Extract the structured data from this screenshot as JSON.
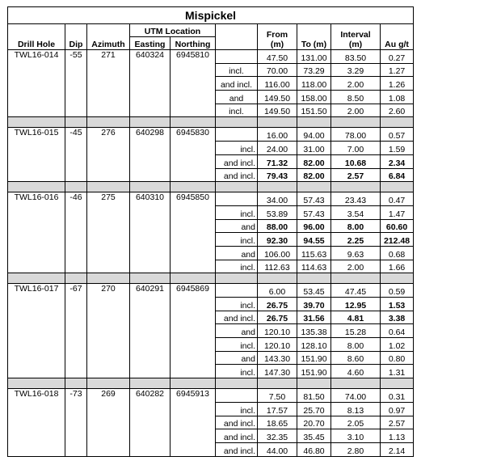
{
  "title": "Mispickel",
  "headers": {
    "drill_hole": "Drill Hole",
    "dip": "Dip",
    "azimuth": "Azimuth",
    "utm_location": "UTM Location",
    "easting": "Easting",
    "northing": "Northing",
    "from": "From (m)",
    "to": "To (m)",
    "interval": "Interval (m)",
    "au": "Au g/t"
  },
  "holes": [
    {
      "id": "TWL16-014",
      "dip": "-55",
      "azimuth": "271",
      "easting": "640324",
      "northing": "6945810",
      "qual_align": "center",
      "intervals": [
        {
          "qual": "",
          "from": "47.50",
          "to": "131.00",
          "interval": "83.50",
          "au": "0.27",
          "bold": false
        },
        {
          "qual": "incl.",
          "from": "70.00",
          "to": "73.29",
          "interval": "3.29",
          "au": "1.27",
          "bold": false
        },
        {
          "qual": "and incl.",
          "from": "116.00",
          "to": "118.00",
          "interval": "2.00",
          "au": "1.26",
          "bold": false
        },
        {
          "qual": "and",
          "from": "149.50",
          "to": "158.00",
          "interval": "8.50",
          "au": "1.08",
          "bold": false
        },
        {
          "qual": "incl.",
          "from": "149.50",
          "to": "151.50",
          "interval": "2.00",
          "au": "2.60",
          "bold": false
        }
      ]
    },
    {
      "id": "TWL16-015",
      "dip": "-45",
      "azimuth": "276",
      "easting": "640298",
      "northing": "6945830",
      "qual_align": "right",
      "intervals": [
        {
          "qual": "",
          "from": "16.00",
          "to": "94.00",
          "interval": "78.00",
          "au": "0.57",
          "bold": false
        },
        {
          "qual": "incl.",
          "from": "24.00",
          "to": "31.00",
          "interval": "7.00",
          "au": "1.59",
          "bold": false
        },
        {
          "qual": "and incl.",
          "from": "71.32",
          "to": "82.00",
          "interval": "10.68",
          "au": "2.34",
          "bold": true
        },
        {
          "qual": "and incl.",
          "from": "79.43",
          "to": "82.00",
          "interval": "2.57",
          "au": "6.84",
          "bold": true
        }
      ]
    },
    {
      "id": "TWL16-016",
      "dip": "-46",
      "azimuth": "275",
      "easting": "640310",
      "northing": "6945850",
      "qual_align": "right",
      "intervals": [
        {
          "qual": "",
          "from": "34.00",
          "to": "57.43",
          "interval": "23.43",
          "au": "0.47",
          "bold": false
        },
        {
          "qual": "incl.",
          "from": "53.89",
          "to": "57.43",
          "interval": "3.54",
          "au": "1.47",
          "bold": false
        },
        {
          "qual": "and",
          "from": "88.00",
          "to": "96.00",
          "interval": "8.00",
          "au": "60.60",
          "bold": true
        },
        {
          "qual": "incl.",
          "from": "92.30",
          "to": "94.55",
          "interval": "2.25",
          "au": "212.48",
          "bold": true
        },
        {
          "qual": "and",
          "from": "106.00",
          "to": "115.63",
          "interval": "9.63",
          "au": "0.68",
          "bold": false
        },
        {
          "qual": "incl.",
          "from": "112.63",
          "to": "114.63",
          "interval": "2.00",
          "au": "1.66",
          "bold": false
        }
      ]
    },
    {
      "id": "TWL16-017",
      "dip": "-67",
      "azimuth": "270",
      "easting": "640291",
      "northing": "6945869",
      "qual_align": "right",
      "intervals": [
        {
          "qual": "",
          "from": "6.00",
          "to": "53.45",
          "interval": "47.45",
          "au": "0.59",
          "bold": false
        },
        {
          "qual": "incl.",
          "from": "26.75",
          "to": "39.70",
          "interval": "12.95",
          "au": "1.53",
          "bold": true
        },
        {
          "qual": "and incl.",
          "from": "26.75",
          "to": "31.56",
          "interval": "4.81",
          "au": "3.38",
          "bold": true
        },
        {
          "qual": "and",
          "from": "120.10",
          "to": "135.38",
          "interval": "15.28",
          "au": "0.64",
          "bold": false
        },
        {
          "qual": "incl.",
          "from": "120.10",
          "to": "128.10",
          "interval": "8.00",
          "au": "1.02",
          "bold": false
        },
        {
          "qual": "and",
          "from": "143.30",
          "to": "151.90",
          "interval": "8.60",
          "au": "0.80",
          "bold": false
        },
        {
          "qual": "incl.",
          "from": "147.30",
          "to": "151.90",
          "interval": "4.60",
          "au": "1.31",
          "bold": false
        }
      ]
    },
    {
      "id": "TWL16-018",
      "dip": "-73",
      "azimuth": "269",
      "easting": "640282",
      "northing": "6945913",
      "qual_align": "right",
      "intervals": [
        {
          "qual": "",
          "from": "7.50",
          "to": "81.50",
          "interval": "74.00",
          "au": "0.31",
          "bold": false
        },
        {
          "qual": "incl.",
          "from": "17.57",
          "to": "25.70",
          "interval": "8.13",
          "au": "0.97",
          "bold": false
        },
        {
          "qual": "and incl.",
          "from": "18.65",
          "to": "20.70",
          "interval": "2.05",
          "au": "2.57",
          "bold": false
        },
        {
          "qual": "and incl.",
          "from": "32.35",
          "to": "35.45",
          "interval": "3.10",
          "au": "1.13",
          "bold": false
        },
        {
          "qual": "and incl.",
          "from": "44.00",
          "to": "46.80",
          "interval": "2.80",
          "au": "2.14",
          "bold": false
        }
      ]
    }
  ]
}
